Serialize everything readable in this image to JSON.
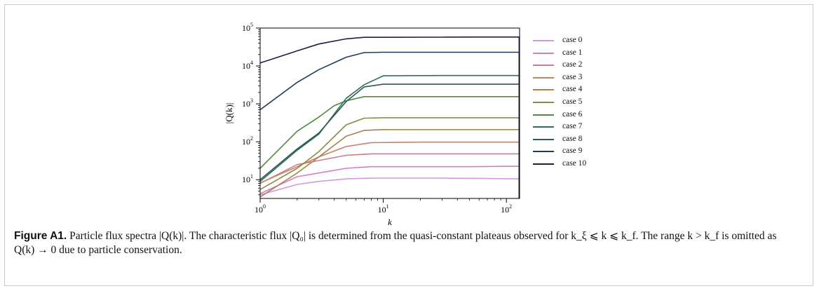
{
  "caption": {
    "label": "Figure A1.",
    "text": "Particle flux spectra |Q(k)|. The characteristic flux |Q₀| is determined from the quasi-constant plateaus observed for k_ξ ⩽ k ⩽ k_f. The range k > k_f is omitted as Q(k) → 0 due to particle conservation."
  },
  "chart_data": {
    "type": "line",
    "title": "",
    "xlabel": "k",
    "ylabel": "|Q(k)|",
    "xscale": "log",
    "yscale": "log",
    "xlim": [
      1,
      128
    ],
    "ylim": [
      3.2,
      100000
    ],
    "xticks": [
      {
        "v": 1,
        "base": "10",
        "exp": "0"
      },
      {
        "v": 10,
        "base": "10",
        "exp": "1"
      },
      {
        "v": 100,
        "base": "10",
        "exp": "2"
      }
    ],
    "yticks": [
      {
        "v": 10,
        "base": "10",
        "exp": "1"
      },
      {
        "v": 100,
        "base": "10",
        "exp": "2"
      },
      {
        "v": 1000,
        "base": "10",
        "exp": "3"
      },
      {
        "v": 10000,
        "base": "10",
        "exp": "4"
      },
      {
        "v": 100000,
        "base": "10",
        "exp": "5"
      }
    ],
    "legend_position": "right",
    "series": [
      {
        "name": "case 0",
        "color": "#d09add",
        "points": [
          [
            1,
            4
          ],
          [
            2,
            7.5
          ],
          [
            3,
            9
          ],
          [
            5,
            10.5
          ],
          [
            8,
            11
          ],
          [
            20,
            11
          ],
          [
            30,
            11
          ],
          [
            60,
            10.8
          ],
          [
            100,
            10.6
          ],
          [
            127,
            10.5
          ]
        ]
      },
      {
        "name": "case 1",
        "color": "#d67fbf",
        "points": [
          [
            1,
            4.3
          ],
          [
            2,
            12
          ],
          [
            3,
            15
          ],
          [
            5,
            20
          ],
          [
            8,
            22
          ],
          [
            20,
            22
          ],
          [
            50,
            22
          ],
          [
            100,
            22.5
          ],
          [
            127,
            22.5
          ]
        ]
      },
      {
        "name": "case 2",
        "color": "#d07a8c",
        "points": [
          [
            1,
            8
          ],
          [
            2,
            25
          ],
          [
            3,
            32
          ],
          [
            5,
            44
          ],
          [
            8,
            48
          ],
          [
            20,
            48
          ],
          [
            50,
            48
          ],
          [
            100,
            48
          ],
          [
            127,
            48
          ]
        ]
      },
      {
        "name": "case 3",
        "color": "#c28568",
        "points": [
          [
            1,
            8.2
          ],
          [
            2,
            22
          ],
          [
            3,
            40
          ],
          [
            5,
            75
          ],
          [
            8,
            95
          ],
          [
            20,
            98
          ],
          [
            50,
            98
          ],
          [
            100,
            98
          ],
          [
            127,
            98
          ]
        ]
      },
      {
        "name": "case 4",
        "color": "#a88452",
        "points": [
          [
            1,
            3.5
          ],
          [
            2,
            15
          ],
          [
            3,
            40
          ],
          [
            5,
            140
          ],
          [
            7,
            200
          ],
          [
            10,
            210
          ],
          [
            30,
            210
          ],
          [
            60,
            210
          ],
          [
            127,
            210
          ]
        ]
      },
      {
        "name": "case 5",
        "color": "#8c8a45",
        "points": [
          [
            1,
            5.5
          ],
          [
            2,
            20
          ],
          [
            3,
            55
          ],
          [
            5,
            280
          ],
          [
            7,
            420
          ],
          [
            10,
            430
          ],
          [
            30,
            430
          ],
          [
            60,
            430
          ],
          [
            127,
            430
          ]
        ]
      },
      {
        "name": "case 6",
        "color": "#4e8a3e",
        "points": [
          [
            1,
            20
          ],
          [
            2,
            190
          ],
          [
            3,
            450
          ],
          [
            4,
            900
          ],
          [
            5,
            1200
          ],
          [
            7,
            1550
          ],
          [
            10,
            1550
          ],
          [
            30,
            1550
          ],
          [
            60,
            1550
          ],
          [
            127,
            1550
          ]
        ]
      },
      {
        "name": "case 7",
        "color": "#2f7050",
        "points": [
          [
            1,
            9
          ],
          [
            2,
            60
          ],
          [
            3,
            160
          ],
          [
            5,
            1400
          ],
          [
            7,
            3200
          ],
          [
            10,
            5500
          ],
          [
            30,
            5600
          ],
          [
            60,
            5600
          ],
          [
            127,
            5600
          ]
        ]
      },
      {
        "name": "case 8",
        "color": "#2a5a5a",
        "points": [
          [
            1,
            10
          ],
          [
            2,
            65
          ],
          [
            3,
            170
          ],
          [
            5,
            1150
          ],
          [
            7,
            2800
          ],
          [
            10,
            3300
          ],
          [
            30,
            3300
          ],
          [
            60,
            3300
          ],
          [
            127,
            3300
          ]
        ]
      },
      {
        "name": "case 9",
        "color": "#1f3b5a",
        "points": [
          [
            1,
            700
          ],
          [
            2,
            3700
          ],
          [
            3,
            8000
          ],
          [
            5,
            17000
          ],
          [
            7,
            22500
          ],
          [
            10,
            23000
          ],
          [
            30,
            23000
          ],
          [
            60,
            23000
          ],
          [
            127,
            23000
          ]
        ]
      },
      {
        "name": "case 10",
        "color": "#1c1f3e",
        "points": [
          [
            1,
            12000
          ],
          [
            2,
            25000
          ],
          [
            3,
            38000
          ],
          [
            5,
            52000
          ],
          [
            7,
            57000
          ],
          [
            10,
            57000
          ],
          [
            30,
            57500
          ],
          [
            60,
            58000
          ],
          [
            127,
            58000
          ]
        ]
      }
    ]
  }
}
